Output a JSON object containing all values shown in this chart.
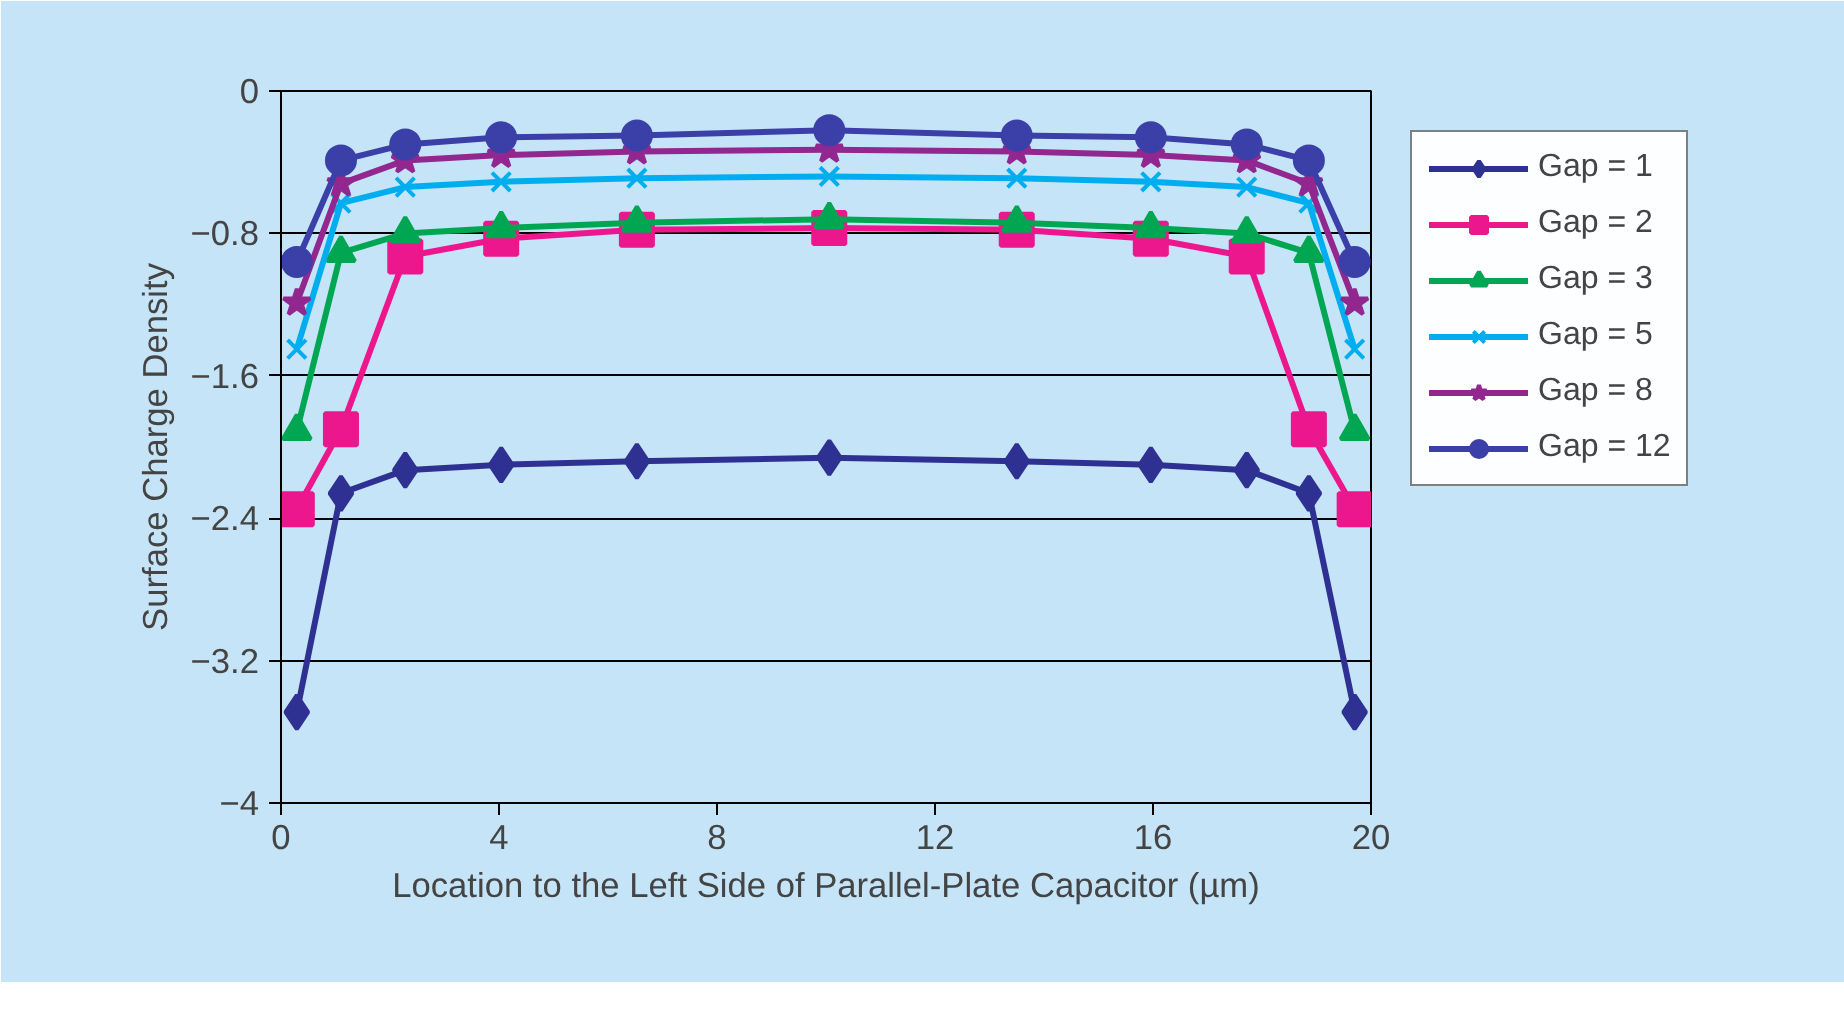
{
  "chart_data": {
    "type": "line",
    "xlabel": "Location to the Left Side of Parallel-Plate Capacitor (µm)",
    "ylabel": "Surface Charge Density",
    "x": [
      0.29,
      1.1,
      2.28,
      4.04,
      6.53,
      10.06,
      13.5,
      15.96,
      17.72,
      18.86,
      19.7
    ],
    "series": [
      {
        "name": "Gap = 1",
        "color": "#2e3192",
        "marker": "diamond",
        "values": [
          -3.49,
          -2.26,
          -2.13,
          -2.1,
          -2.08,
          -2.06,
          -2.08,
          -2.1,
          -2.13,
          -2.26,
          -3.49
        ]
      },
      {
        "name": "Gap = 2",
        "color": "#ec178c",
        "marker": "square",
        "values": [
          -2.35,
          -1.9,
          -0.93,
          -0.83,
          -0.78,
          -0.77,
          -0.78,
          -0.83,
          -0.93,
          -1.9,
          -2.35
        ]
      },
      {
        "name": "Gap = 3",
        "color": "#00a651",
        "marker": "triangle",
        "values": [
          -1.91,
          -0.91,
          -0.8,
          -0.77,
          -0.74,
          -0.72,
          -0.74,
          -0.77,
          -0.8,
          -0.91,
          -1.91
        ]
      },
      {
        "name": "Gap = 5",
        "color": "#00aeef",
        "marker": "cross",
        "values": [
          -1.45,
          -0.63,
          -0.54,
          -0.51,
          -0.49,
          -0.48,
          -0.49,
          -0.51,
          -0.54,
          -0.63,
          -1.45
        ]
      },
      {
        "name": "Gap = 8",
        "color": "#92278f",
        "marker": "star",
        "values": [
          -1.19,
          -0.52,
          -0.39,
          -0.36,
          -0.34,
          -0.33,
          -0.34,
          -0.36,
          -0.39,
          -0.52,
          -1.19
        ]
      },
      {
        "name": "Gap = 12",
        "color": "#3b3fa8",
        "marker": "circle",
        "values": [
          -0.96,
          -0.39,
          -0.3,
          -0.26,
          -0.25,
          -0.22,
          -0.25,
          -0.26,
          -0.3,
          -0.39,
          -0.96
        ]
      }
    ],
    "xlim": [
      0,
      20
    ],
    "xticks": [
      0,
      4,
      8,
      12,
      16,
      20
    ],
    "ylim": [
      -4,
      0
    ],
    "yticks": [
      {
        "value": -4,
        "label": "−4"
      },
      {
        "value": -3.2,
        "label": "−3.2"
      },
      {
        "value": -2.4,
        "label": "−2.4"
      },
      {
        "value": -1.6,
        "label": "−1.6"
      },
      {
        "value": -0.8,
        "label": "−0.8"
      },
      0
    ],
    "grid": "y",
    "legend": "right"
  }
}
